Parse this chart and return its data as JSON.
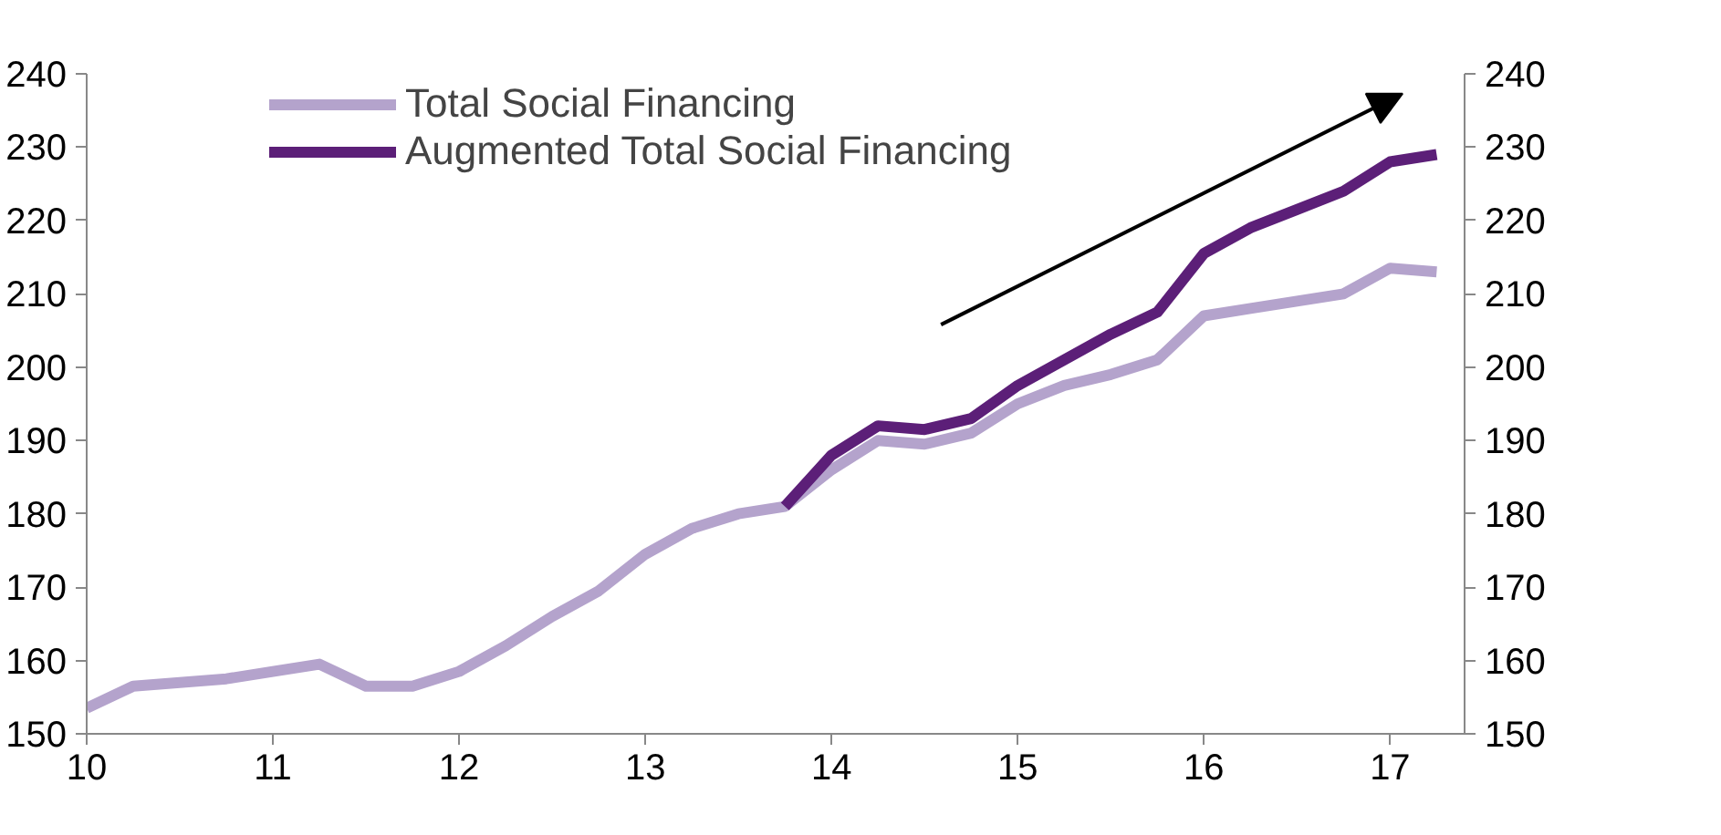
{
  "chart_data": {
    "type": "line",
    "x": [
      10,
      10.25,
      10.5,
      10.75,
      11,
      11.25,
      11.5,
      11.75,
      12,
      12.25,
      12.5,
      12.75,
      13,
      13.25,
      13.5,
      13.75,
      14,
      14.25,
      14.5,
      14.75,
      15,
      15.25,
      15.5,
      15.75,
      16,
      16.25,
      16.5,
      16.75,
      17,
      17.25
    ],
    "series": [
      {
        "name": "Total Social Financing",
        "color": "#b4a3cc",
        "values": [
          153.5,
          156.5,
          157,
          157.5,
          158.5,
          159.5,
          156.5,
          156.5,
          158.5,
          162,
          166,
          169.5,
          174.5,
          178,
          180,
          181,
          186,
          190,
          189.5,
          191,
          195,
          197.5,
          199,
          201,
          207,
          208,
          209,
          210,
          213.5,
          213
        ]
      },
      {
        "name": "Augmented Total Social Financing",
        "color": "#5c1f78",
        "values": [
          null,
          null,
          null,
          null,
          null,
          null,
          null,
          null,
          null,
          null,
          null,
          null,
          null,
          null,
          null,
          181,
          188,
          192,
          191.5,
          193,
          197.5,
          201,
          204.5,
          207.5,
          215.5,
          219,
          221.5,
          224,
          228,
          229
        ]
      }
    ],
    "xlim": [
      10,
      17.4
    ],
    "xticks": [
      10,
      11,
      12,
      13,
      14,
      15,
      16,
      17
    ],
    "ylim": [
      150,
      240
    ],
    "yticks": [
      150,
      160,
      170,
      180,
      190,
      200,
      210,
      220,
      230,
      240
    ],
    "y2lim": [
      150,
      240
    ],
    "y2ticks": [
      150,
      160,
      170,
      180,
      190,
      200,
      210,
      220,
      230,
      240
    ],
    "grid": false,
    "legend": "top",
    "line_style": "solid",
    "marker": "none"
  }
}
